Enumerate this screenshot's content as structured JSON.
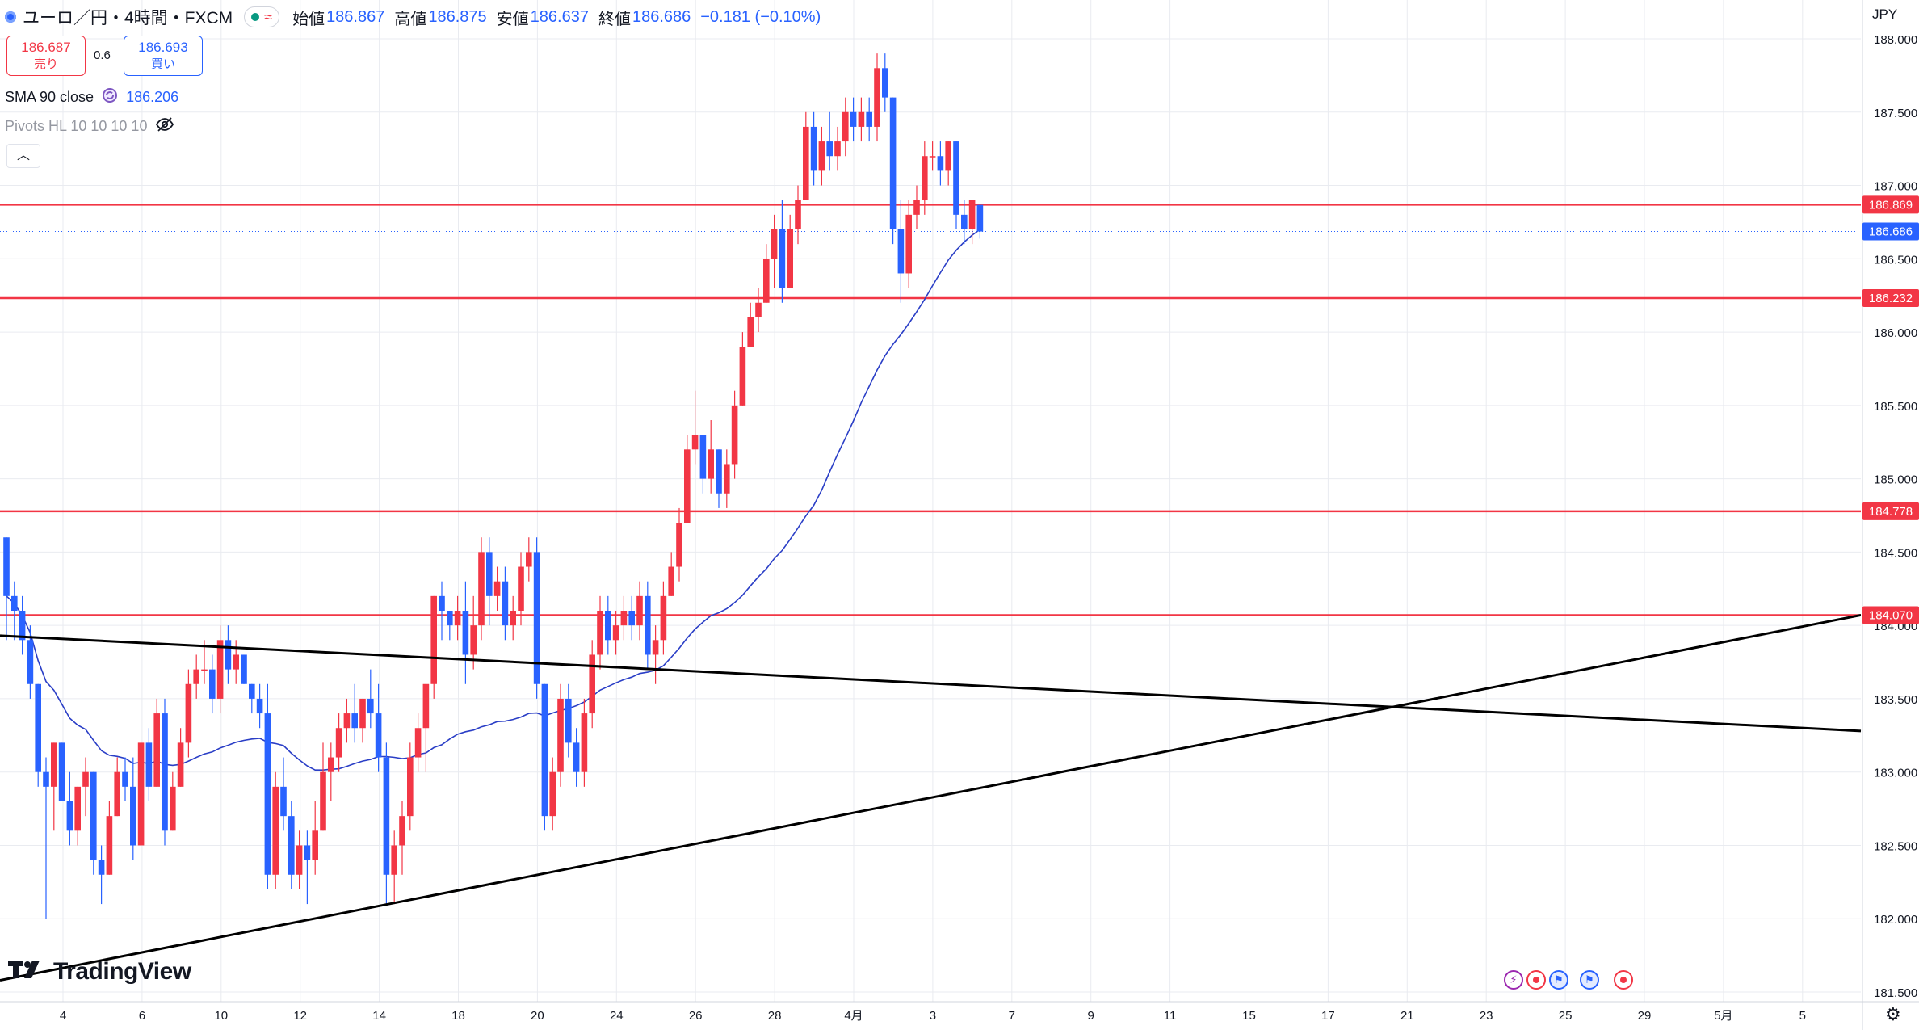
{
  "header": {
    "symbol_title": "ユーロ／円・4時間・FXCM",
    "open_label": "始値",
    "open": "186.867",
    "high_label": "高値",
    "high": "186.875",
    "low_label": "安値",
    "low": "186.637",
    "close_label": "終値",
    "close": "186.686",
    "change": "−0.181 (−0.10%)"
  },
  "trade": {
    "sell_price": "186.687",
    "sell_label": "売り",
    "spread": "0.6",
    "buy_price": "186.693",
    "buy_label": "買い"
  },
  "indicators": {
    "sma_label": "SMA 90 close",
    "sma_value": "186.206",
    "pivots_label": "Pivots HL 10 10 10 10"
  },
  "currency": "JPY",
  "brand": "TradingView",
  "colors": {
    "up": "#f23645",
    "down": "#2962ff",
    "sma": "#2a3ec6",
    "level_line": "#f23645",
    "trendline": "#000000",
    "grid": "#e9ebf0",
    "axis_text": "#131722"
  },
  "chart_data": {
    "type": "candlestick",
    "y_axis": {
      "min": 181.5,
      "max": 188.0,
      "ticks": [
        "188.000",
        "187.500",
        "187.000",
        "186.500",
        "186.000",
        "185.500",
        "185.000",
        "184.500",
        "184.000",
        "183.500",
        "183.000",
        "182.500",
        "182.000",
        "181.500"
      ]
    },
    "x_ticks": [
      "4",
      "6",
      "10",
      "12",
      "14",
      "18",
      "20",
      "24",
      "26",
      "28",
      "4月",
      "3",
      "7",
      "9",
      "11",
      "15",
      "17",
      "21",
      "23",
      "25",
      "29",
      "5月",
      "5"
    ],
    "price_labels": [
      {
        "value": 186.869,
        "text": "186.869",
        "kind": "level"
      },
      {
        "value": 186.686,
        "text": "186.686",
        "kind": "current"
      },
      {
        "value": 186.232,
        "text": "186.232",
        "kind": "level"
      },
      {
        "value": 184.778,
        "text": "184.778",
        "kind": "level"
      },
      {
        "value": 184.07,
        "text": "184.070",
        "kind": "level"
      }
    ],
    "horizontal_levels": [
      186.869,
      186.232,
      184.778,
      184.07
    ],
    "trendlines": [
      {
        "name": "descending",
        "from": {
          "bar": 0,
          "price": 183.93
        },
        "to": {
          "bar": 233,
          "price": 183.28
        }
      },
      {
        "name": "ascending",
        "from": {
          "bar": 0,
          "price": 181.58
        },
        "to": {
          "bar": 233,
          "price": 184.07
        }
      }
    ],
    "sma_period": 90,
    "ohlc_approx": [
      [
        184.6,
        184.6,
        183.9,
        184.2
      ],
      [
        184.2,
        184.3,
        183.9,
        184.1
      ],
      [
        184.1,
        184.2,
        183.8,
        183.9
      ],
      [
        183.9,
        184.0,
        183.5,
        183.6
      ],
      [
        183.6,
        183.6,
        182.9,
        183.0
      ],
      [
        183.0,
        183.1,
        182.0,
        182.9
      ],
      [
        182.9,
        183.2,
        182.6,
        183.2
      ],
      [
        183.2,
        183.2,
        182.8,
        182.8
      ],
      [
        182.8,
        183.0,
        182.5,
        182.6
      ],
      [
        182.6,
        182.9,
        182.5,
        182.9
      ],
      [
        182.9,
        183.1,
        182.7,
        183.0
      ],
      [
        183.0,
        183.0,
        182.3,
        182.4
      ],
      [
        182.4,
        182.5,
        182.1,
        182.3
      ],
      [
        182.3,
        182.8,
        182.3,
        182.7
      ],
      [
        182.7,
        183.1,
        182.7,
        183.0
      ],
      [
        183.0,
        183.1,
        182.8,
        182.9
      ],
      [
        182.9,
        183.1,
        182.4,
        182.5
      ],
      [
        182.5,
        183.2,
        182.5,
        183.2
      ],
      [
        183.2,
        183.3,
        182.8,
        182.9
      ],
      [
        182.9,
        183.5,
        182.9,
        183.4
      ],
      [
        183.4,
        183.5,
        182.5,
        182.6
      ],
      [
        182.6,
        183.0,
        182.6,
        182.9
      ],
      [
        182.9,
        183.3,
        182.9,
        183.2
      ],
      [
        183.2,
        183.7,
        183.1,
        183.6
      ],
      [
        183.6,
        183.8,
        183.5,
        183.7
      ],
      [
        183.7,
        183.9,
        183.6,
        183.7
      ],
      [
        183.7,
        183.8,
        183.4,
        183.5
      ],
      [
        183.5,
        184.0,
        183.4,
        183.9
      ],
      [
        183.9,
        184.0,
        183.6,
        183.7
      ],
      [
        183.7,
        183.9,
        183.6,
        183.8
      ],
      [
        183.8,
        183.8,
        183.6,
        183.6
      ],
      [
        183.6,
        183.6,
        183.4,
        183.5
      ],
      [
        183.5,
        183.6,
        183.3,
        183.4
      ],
      [
        183.4,
        183.6,
        182.2,
        182.3
      ],
      [
        182.3,
        183.0,
        182.2,
        182.9
      ],
      [
        182.9,
        183.1,
        182.6,
        182.7
      ],
      [
        182.7,
        182.8,
        182.2,
        182.3
      ],
      [
        182.3,
        182.6,
        182.2,
        182.5
      ],
      [
        182.5,
        182.6,
        182.1,
        182.4
      ],
      [
        182.4,
        182.8,
        182.3,
        182.6
      ],
      [
        182.6,
        183.2,
        182.6,
        183.0
      ],
      [
        183.0,
        183.2,
        182.8,
        183.1
      ],
      [
        183.1,
        183.4,
        183.0,
        183.3
      ],
      [
        183.3,
        183.5,
        183.2,
        183.4
      ],
      [
        183.4,
        183.6,
        183.2,
        183.3
      ],
      [
        183.3,
        183.5,
        183.2,
        183.5
      ],
      [
        183.5,
        183.7,
        183.3,
        183.4
      ],
      [
        183.4,
        183.6,
        183.0,
        183.1
      ],
      [
        183.1,
        183.2,
        182.1,
        182.3
      ],
      [
        182.3,
        182.6,
        182.1,
        182.5
      ],
      [
        182.5,
        182.8,
        182.3,
        182.7
      ],
      [
        182.7,
        183.2,
        182.6,
        183.1
      ],
      [
        183.1,
        183.4,
        183.0,
        183.3
      ],
      [
        183.3,
        183.6,
        183.0,
        183.6
      ],
      [
        183.6,
        184.2,
        183.5,
        184.2
      ],
      [
        184.2,
        184.3,
        183.9,
        184.1
      ],
      [
        184.1,
        184.1,
        183.9,
        184.0
      ],
      [
        184.0,
        184.2,
        183.9,
        184.1
      ],
      [
        184.1,
        184.3,
        183.6,
        183.8
      ],
      [
        183.8,
        184.2,
        183.7,
        184.0
      ],
      [
        184.0,
        184.6,
        183.9,
        184.5
      ],
      [
        184.5,
        184.6,
        184.0,
        184.2
      ],
      [
        184.2,
        184.4,
        184.1,
        184.3
      ],
      [
        184.3,
        184.4,
        183.9,
        184.0
      ],
      [
        184.0,
        184.2,
        183.9,
        184.1
      ],
      [
        184.1,
        184.5,
        184.0,
        184.4
      ],
      [
        184.4,
        184.6,
        184.3,
        184.5
      ],
      [
        184.5,
        184.6,
        183.5,
        183.6
      ],
      [
        183.6,
        183.6,
        182.6,
        182.7
      ],
      [
        182.7,
        183.1,
        182.6,
        183.0
      ],
      [
        183.0,
        183.6,
        182.9,
        183.5
      ],
      [
        183.5,
        183.6,
        183.1,
        183.2
      ],
      [
        183.2,
        183.3,
        182.9,
        183.0
      ],
      [
        183.0,
        183.5,
        182.9,
        183.4
      ],
      [
        183.4,
        183.9,
        183.3,
        183.8
      ],
      [
        183.8,
        184.2,
        183.7,
        184.1
      ],
      [
        184.1,
        184.2,
        183.8,
        183.9
      ],
      [
        183.9,
        184.1,
        183.8,
        184.0
      ],
      [
        184.0,
        184.2,
        183.9,
        184.1
      ],
      [
        184.1,
        184.2,
        183.9,
        184.0
      ],
      [
        184.0,
        184.3,
        183.9,
        184.2
      ],
      [
        184.2,
        184.3,
        183.7,
        183.8
      ],
      [
        183.8,
        184.0,
        183.6,
        183.9
      ],
      [
        183.9,
        184.3,
        183.8,
        184.2
      ],
      [
        184.2,
        184.5,
        184.2,
        184.4
      ],
      [
        184.4,
        184.8,
        184.3,
        184.7
      ],
      [
        184.7,
        185.3,
        184.7,
        185.2
      ],
      [
        185.2,
        185.6,
        185.1,
        185.3
      ],
      [
        185.3,
        185.3,
        184.9,
        185.0
      ],
      [
        185.0,
        185.4,
        184.9,
        185.2
      ],
      [
        185.2,
        185.2,
        184.8,
        184.9
      ],
      [
        184.9,
        185.2,
        184.8,
        185.1
      ],
      [
        185.1,
        185.6,
        185.0,
        185.5
      ],
      [
        185.5,
        186.0,
        185.5,
        185.9
      ],
      [
        185.9,
        186.2,
        185.9,
        186.1
      ],
      [
        186.1,
        186.3,
        186.0,
        186.2
      ],
      [
        186.2,
        186.6,
        186.2,
        186.5
      ],
      [
        186.5,
        186.8,
        186.3,
        186.7
      ],
      [
        186.7,
        186.9,
        186.2,
        186.3
      ],
      [
        186.3,
        186.8,
        186.3,
        186.7
      ],
      [
        186.7,
        187.0,
        186.6,
        186.9
      ],
      [
        186.9,
        187.5,
        186.9,
        187.4
      ],
      [
        187.4,
        187.5,
        187.0,
        187.1
      ],
      [
        187.1,
        187.4,
        187.0,
        187.3
      ],
      [
        187.3,
        187.5,
        187.1,
        187.2
      ],
      [
        187.2,
        187.4,
        187.1,
        187.3
      ],
      [
        187.3,
        187.6,
        187.2,
        187.5
      ],
      [
        187.5,
        187.6,
        187.3,
        187.4
      ],
      [
        187.4,
        187.6,
        187.3,
        187.5
      ],
      [
        187.5,
        187.6,
        187.3,
        187.4
      ],
      [
        187.4,
        187.9,
        187.3,
        187.8
      ],
      [
        187.8,
        187.9,
        187.5,
        187.6
      ],
      [
        187.6,
        187.6,
        186.6,
        186.7
      ],
      [
        186.7,
        186.9,
        186.2,
        186.4
      ],
      [
        186.4,
        186.9,
        186.3,
        186.8
      ],
      [
        186.8,
        187.0,
        186.7,
        186.9
      ],
      [
        186.9,
        187.3,
        186.8,
        187.2
      ],
      [
        187.2,
        187.3,
        187.1,
        187.2
      ],
      [
        187.2,
        187.3,
        187.0,
        187.1
      ],
      [
        187.1,
        187.3,
        187.0,
        187.3
      ],
      [
        187.3,
        187.3,
        186.7,
        186.8
      ],
      [
        186.8,
        186.9,
        186.6,
        186.7
      ],
      [
        186.7,
        186.9,
        186.6,
        186.9
      ],
      [
        186.867,
        186.875,
        186.637,
        186.686
      ]
    ]
  }
}
